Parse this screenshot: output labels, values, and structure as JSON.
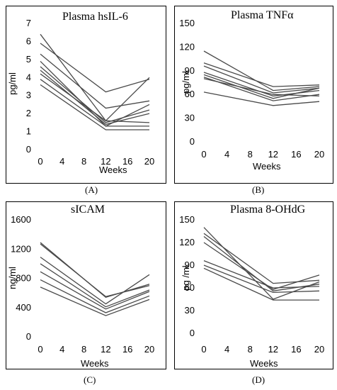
{
  "chart_data": [
    {
      "type": "line",
      "caption": "(A)",
      "title": "Plasma hsIL-6",
      "xlabel": "Weeks",
      "ylabel": "pg/ml",
      "x": [
        0,
        12,
        20
      ],
      "xticks": [
        0,
        4,
        8,
        12,
        16,
        20
      ],
      "xlim": [
        0,
        20
      ],
      "ylim": [
        0,
        7
      ],
      "yticks": [
        0,
        1,
        2,
        3,
        4,
        5,
        6,
        7
      ],
      "series": [
        {
          "values": [
            6.4,
            1.6,
            4.0
          ]
        },
        {
          "values": [
            5.9,
            3.2,
            3.9
          ]
        },
        {
          "values": [
            5.3,
            2.3,
            2.7
          ]
        },
        {
          "values": [
            4.9,
            1.3,
            2.5
          ]
        },
        {
          "values": [
            4.6,
            1.5,
            2.2
          ]
        },
        {
          "values": [
            4.4,
            1.4,
            2.0
          ]
        },
        {
          "values": [
            4.2,
            1.6,
            1.5
          ]
        },
        {
          "values": [
            3.9,
            1.3,
            1.3
          ]
        },
        {
          "values": [
            3.6,
            1.1,
            1.1
          ]
        }
      ]
    },
    {
      "type": "line",
      "caption": "(B)",
      "title": "Plasma TNFα",
      "xlabel": "Weeks",
      "ylabel": "pg/ml",
      "x": [
        0,
        12,
        20
      ],
      "xticks": [
        0,
        4,
        8,
        12,
        16,
        20
      ],
      "xlim": [
        0,
        20
      ],
      "ylim": [
        0,
        150
      ],
      "yticks": [
        0,
        30,
        60,
        90,
        120,
        150
      ],
      "series": [
        {
          "values": [
            115,
            65,
            70
          ]
        },
        {
          "values": [
            100,
            70,
            72
          ]
        },
        {
          "values": [
            96,
            62,
            68
          ]
        },
        {
          "values": [
            88,
            58,
            65
          ]
        },
        {
          "values": [
            85,
            55,
            68
          ]
        },
        {
          "values": [
            82,
            52,
            60
          ]
        },
        {
          "values": [
            80,
            60,
            58
          ]
        },
        {
          "values": [
            63,
            46,
            51
          ]
        }
      ]
    },
    {
      "type": "line",
      "caption": "(C)",
      "title": "sICAM",
      "xlabel": "Weeks",
      "ylabel": "ng/ml",
      "x": [
        0,
        12,
        20
      ],
      "xticks": [
        0,
        4,
        8,
        12,
        16,
        20
      ],
      "xlim": [
        0,
        20
      ],
      "ylim": [
        0,
        1600
      ],
      "yticks": [
        0,
        400,
        800,
        1200,
        1600
      ],
      "series": [
        {
          "values": [
            1290,
            540,
            720
          ]
        },
        {
          "values": [
            1270,
            550,
            700
          ]
        },
        {
          "values": [
            1090,
            450,
            850
          ]
        },
        {
          "values": [
            1000,
            410,
            640
          ]
        },
        {
          "values": [
            890,
            380,
            620
          ]
        },
        {
          "values": [
            780,
            330,
            560
          ]
        },
        {
          "values": [
            680,
            290,
            510
          ]
        }
      ]
    },
    {
      "type": "line",
      "caption": "(D)",
      "title": "Plasma 8-OHdG",
      "xlabel": "Weeks",
      "ylabel": "pg /ml",
      "x": [
        0,
        12,
        20
      ],
      "xticks": [
        0,
        4,
        8,
        12,
        16,
        20
      ],
      "xlim": [
        0,
        20
      ],
      "ylim": [
        0,
        150
      ],
      "yticks": [
        0,
        30,
        60,
        90,
        120,
        150
      ],
      "series": [
        {
          "values": [
            140,
            45,
            68
          ]
        },
        {
          "values": [
            132,
            66,
            70
          ]
        },
        {
          "values": [
            128,
            56,
            65
          ]
        },
        {
          "values": [
            120,
            58,
            77
          ]
        },
        {
          "values": [
            96,
            60,
            62
          ]
        },
        {
          "values": [
            90,
            54,
            56
          ]
        },
        {
          "values": [
            86,
            44,
            44
          ]
        }
      ]
    }
  ]
}
